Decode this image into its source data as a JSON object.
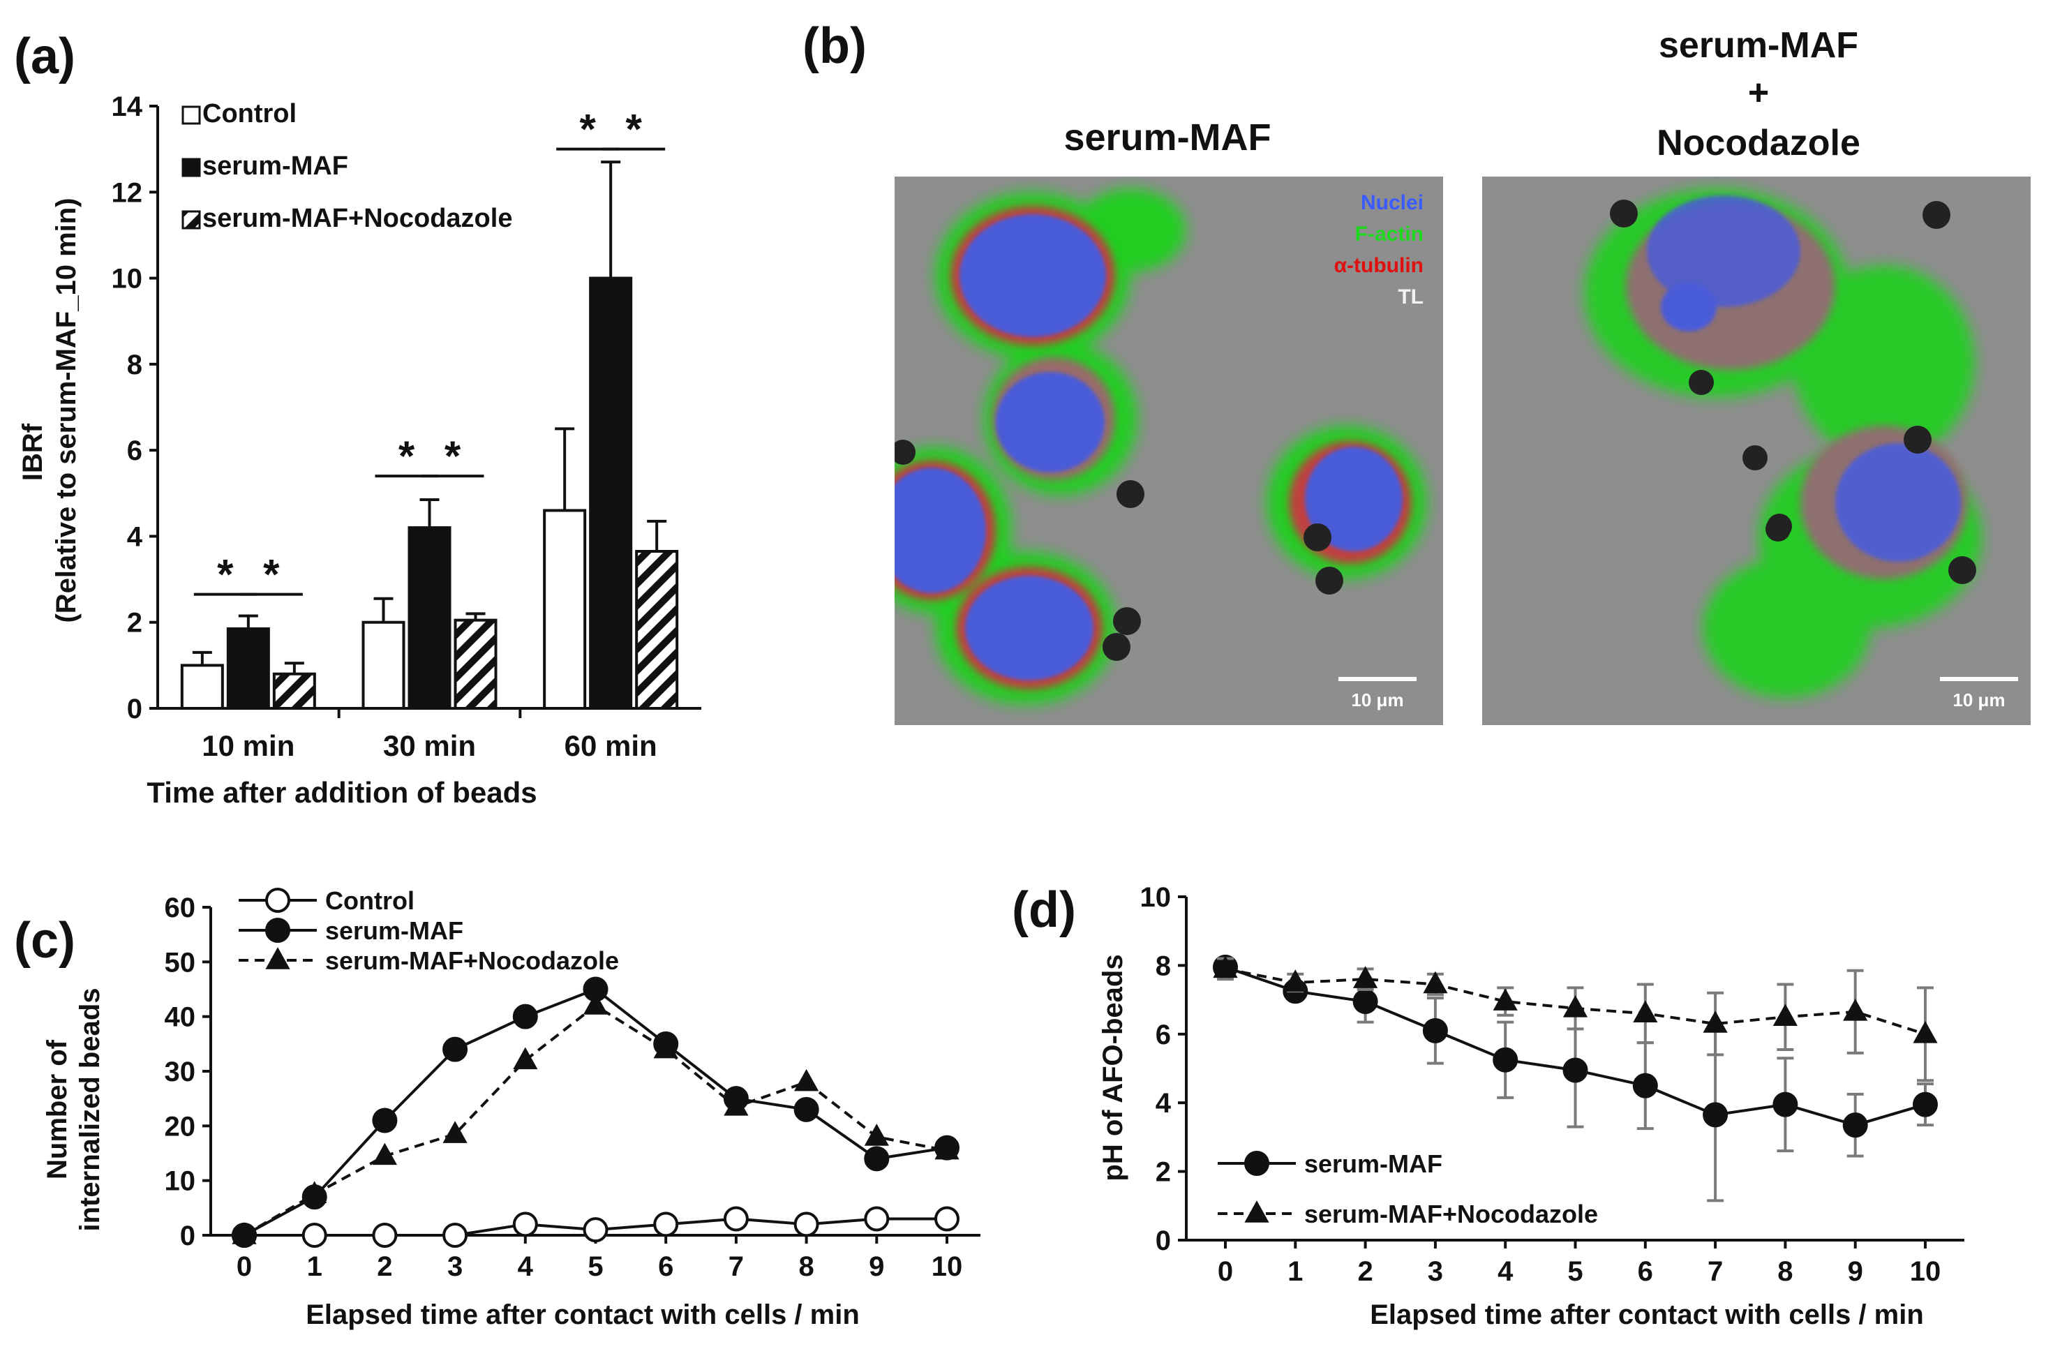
{
  "panels": {
    "a": "(a)",
    "b": "(b)",
    "c": "(c)",
    "d": "(d)"
  },
  "colors": {
    "nuclei": "#3a5bff",
    "factin": "#1ed81e",
    "tubulin": "#e01010",
    "tl": "#f2f2f2",
    "cell_bg": "#8d8d8d"
  },
  "chart_data": [
    {
      "panel": "a",
      "type": "bar",
      "xlabel": "Time after addition of beads",
      "ylabel": "IBRf",
      "ylabel2": "(Relative to serum-MAF_10 min)",
      "categories": [
        "10 min",
        "30 min",
        "60 min"
      ],
      "ylim": [
        0,
        14
      ],
      "yticks": [
        0,
        2,
        4,
        6,
        8,
        10,
        12,
        14
      ],
      "legend": [
        "Control",
        "serum-MAF",
        "serum-MAF+Nocodazole"
      ],
      "legend_position": "top-left",
      "series": [
        {
          "name": "Control",
          "fill": "white",
          "values": [
            1.0,
            2.0,
            4.6
          ],
          "errors": [
            0.3,
            0.55,
            1.9
          ]
        },
        {
          "name": "serum-MAF",
          "fill": "black",
          "values": [
            1.85,
            4.2,
            10.0
          ],
          "errors": [
            0.3,
            0.65,
            2.7
          ]
        },
        {
          "name": "serum-MAF+Nocodazole",
          "fill": "hatch",
          "values": [
            0.8,
            2.05,
            3.65
          ],
          "errors": [
            0.25,
            0.15,
            0.7
          ]
        }
      ],
      "significance": [
        {
          "category": 0,
          "pairs": [
            [
              0,
              1
            ],
            [
              1,
              2
            ]
          ],
          "label": "*",
          "height": 2.65
        },
        {
          "category": 1,
          "pairs": [
            [
              0,
              1
            ],
            [
              1,
              2
            ]
          ],
          "label": "*",
          "height": 5.4
        },
        {
          "category": 2,
          "pairs": [
            [
              0,
              1
            ],
            [
              1,
              2
            ]
          ],
          "label": "*",
          "height": 13.0
        }
      ]
    },
    {
      "panel": "c",
      "type": "line",
      "xlabel": "Elapsed time after contact with cells / min",
      "ylabel": "Number of",
      "ylabel2": "internalized beads",
      "x": [
        0,
        1,
        2,
        3,
        4,
        5,
        6,
        7,
        8,
        9,
        10
      ],
      "ylim": [
        0,
        60
      ],
      "xlim": [
        0,
        10
      ],
      "yticks": [
        0,
        10,
        20,
        30,
        40,
        50,
        60
      ],
      "legend_position": "top-left",
      "series": [
        {
          "name": "Control",
          "marker": "open-circle",
          "line": "solid",
          "values": [
            0,
            0,
            0,
            0,
            2,
            1,
            2,
            3,
            2,
            3,
            3
          ]
        },
        {
          "name": "serum-MAF",
          "marker": "filled-circle",
          "line": "solid",
          "values": [
            0,
            7,
            21,
            34,
            40,
            45,
            35,
            25,
            23,
            14,
            16
          ]
        },
        {
          "name": "serum-MAF+Nocodazole",
          "marker": "triangle",
          "line": "dashed",
          "values": [
            0,
            7.5,
            14.5,
            18.5,
            32,
            42,
            34,
            23.5,
            28,
            18,
            15.5
          ]
        }
      ]
    },
    {
      "panel": "d",
      "type": "line",
      "xlabel": "Elapsed time after contact with cells / min",
      "ylabel": "pH of AFO-beads",
      "x": [
        0,
        1,
        2,
        3,
        4,
        5,
        6,
        7,
        8,
        9,
        10
      ],
      "ylim": [
        0,
        10
      ],
      "xlim": [
        0,
        10
      ],
      "yticks": [
        0,
        2,
        4,
        6,
        8,
        10
      ],
      "legend_position": "bottom-left",
      "series": [
        {
          "name": "serum-MAF",
          "marker": "filled-circle",
          "line": "solid",
          "values": [
            7.95,
            7.25,
            6.95,
            6.1,
            5.25,
            4.95,
            4.5,
            3.65,
            3.95,
            3.35,
            3.95
          ],
          "errors": [
            0.2,
            0.2,
            0.6,
            0.95,
            1.1,
            1.65,
            1.25,
            2.5,
            1.35,
            0.9,
            0.6
          ]
        },
        {
          "name": "serum-MAF+Nocodazole",
          "marker": "triangle",
          "line": "dashed",
          "values": [
            7.9,
            7.5,
            7.6,
            7.45,
            6.95,
            6.75,
            6.6,
            6.3,
            6.5,
            6.65,
            6.0
          ],
          "errors": [
            0.3,
            0.25,
            0.3,
            0.3,
            0.4,
            0.6,
            0.85,
            0.9,
            0.95,
            1.2,
            1.35
          ]
        }
      ]
    }
  ],
  "micrographs": {
    "left_title": "serum-MAF",
    "right_title_1": "serum-MAF",
    "right_title_2": "+",
    "right_title_3": "Nocodazole",
    "channel_nuclei": "Nuclei",
    "channel_factin": "F-actin",
    "channel_tubulin": "α-tubulin",
    "channel_tl": "TL",
    "scale_label": "10 μm"
  }
}
